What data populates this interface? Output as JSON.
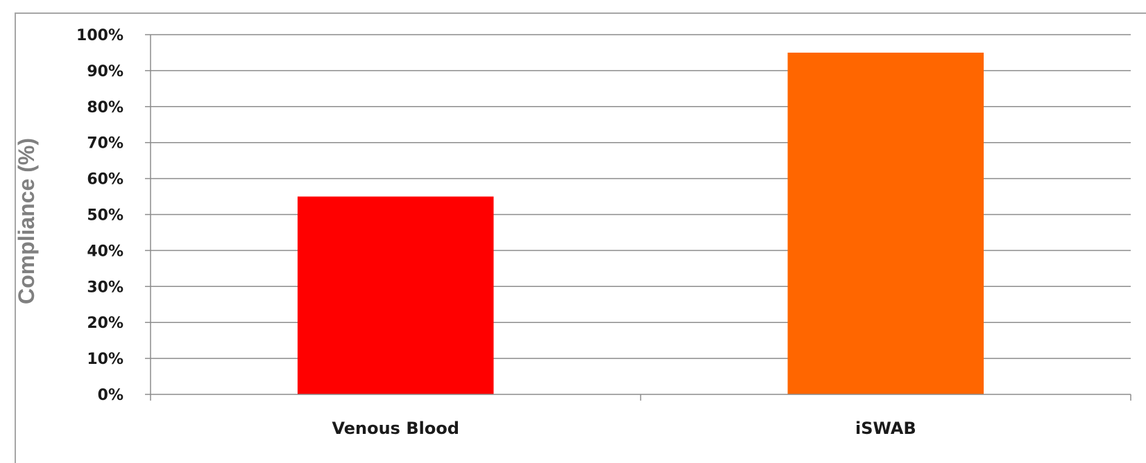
{
  "chart_data": {
    "type": "bar",
    "title": "",
    "xlabel": "",
    "ylabel": "Compliance (%)",
    "categories": [
      "Venous Blood",
      "iSWAB"
    ],
    "values": [
      55,
      95
    ],
    "bar_colors": [
      "#ff0000",
      "#ff6600"
    ],
    "ylim": [
      0,
      100
    ],
    "yticks": [
      0,
      10,
      20,
      30,
      40,
      50,
      60,
      70,
      80,
      90,
      100
    ],
    "ytick_labels": [
      "0%",
      "10%",
      "20%",
      "30%",
      "40%",
      "50%",
      "60%",
      "70%",
      "80%",
      "90%",
      "100%"
    ],
    "grid": true,
    "legend": "none",
    "colors": {
      "gridline": "#8c8c8c",
      "axis": "#8c8c8c",
      "frame": "#a6a6a6",
      "ylabel": "#808080",
      "text": "#1a1a1a"
    }
  }
}
